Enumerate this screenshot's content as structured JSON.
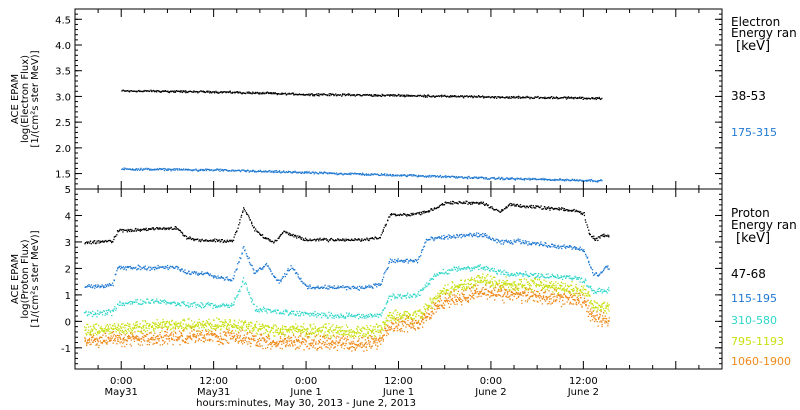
{
  "chart_data": [
    {
      "type": "scatter",
      "panel": "electron",
      "ylabel": [
        "ACE EPAM",
        "log(Electron Flux)",
        "[1/(cm²s ster MeV)]"
      ],
      "ylim": [
        1.2,
        4.7
      ],
      "yticks": [
        1.5,
        2.0,
        2.5,
        3.0,
        3.5,
        4.0,
        4.5
      ],
      "ytick_labels": [
        "1.5",
        "2.0",
        "2.5",
        "3.0",
        "3.5",
        "4.0",
        "4.5"
      ],
      "xlim": [
        -0.25,
        3.25
      ],
      "legend": {
        "title": [
          "Electron",
          "Energy ran"
        ],
        "unit": "[keV]",
        "entries": [
          "38-53",
          "175-315"
        ]
      },
      "series": [
        {
          "name": "38-53",
          "color": "#000000",
          "profile": [
            [
              0.0,
              3.12
            ],
            [
              0.5,
              3.1
            ],
            [
              1.0,
              3.05
            ],
            [
              1.5,
              3.03
            ],
            [
              2.0,
              3.0
            ],
            [
              2.5,
              2.98
            ],
            [
              2.6,
              2.97
            ]
          ]
        },
        {
          "name": "175-315",
          "color": "#1e78d2",
          "profile": [
            [
              0.0,
              1.6
            ],
            [
              0.5,
              1.58
            ],
            [
              1.0,
              1.53
            ],
            [
              1.5,
              1.48
            ],
            [
              2.0,
              1.42
            ],
            [
              2.5,
              1.38
            ],
            [
              2.6,
              1.37
            ]
          ]
        }
      ]
    },
    {
      "type": "scatter",
      "panel": "proton",
      "ylabel": [
        "ACE EPAM",
        "log(Proton Flux)",
        "[1/(cm²s ster MeV)]"
      ],
      "ylim": [
        -1.8,
        5.0
      ],
      "yticks": [
        -1,
        0,
        1,
        2,
        3,
        4,
        5
      ],
      "ytick_labels": [
        "-1",
        "0",
        "1",
        "2",
        "3",
        "4",
        "5"
      ],
      "xlim": [
        -0.25,
        3.25
      ],
      "xticks": [
        0,
        0.5,
        1.0,
        1.5,
        2.0,
        2.5
      ],
      "xtick_labels": [
        [
          "0:00",
          "May31"
        ],
        [
          "12:00",
          "May31"
        ],
        [
          "0:00",
          "June 1"
        ],
        [
          "12:00",
          "June 1"
        ],
        [
          "0:00",
          "June 2"
        ],
        [
          "12:00",
          "June 2"
        ]
      ],
      "xlabel": "hours:minutes, May 30, 2013 - June  2, 2013",
      "legend": {
        "title": [
          "Proton",
          "Energy ran"
        ],
        "unit": "[keV]",
        "entries": [
          "47-68",
          "115-195",
          "310-580",
          "795-1193",
          "1060-1900"
        ]
      },
      "series": [
        {
          "name": "47-68",
          "color": "#000000",
          "profile": [
            [
              -0.2,
              3.0
            ],
            [
              -0.05,
              3.05
            ],
            [
              -0.02,
              3.45
            ],
            [
              0.3,
              3.55
            ],
            [
              0.35,
              3.2
            ],
            [
              0.4,
              3.1
            ],
            [
              0.6,
              3.05
            ],
            [
              0.62,
              3.4
            ],
            [
              0.66,
              4.3
            ],
            [
              0.72,
              3.5
            ],
            [
              0.75,
              3.3
            ],
            [
              0.82,
              3.0
            ],
            [
              0.88,
              3.4
            ],
            [
              0.95,
              3.2
            ],
            [
              1.0,
              3.1
            ],
            [
              1.3,
              3.1
            ],
            [
              1.4,
              3.2
            ],
            [
              1.45,
              4.05
            ],
            [
              1.55,
              4.05
            ],
            [
              1.62,
              4.1
            ],
            [
              1.7,
              4.3
            ],
            [
              1.75,
              4.5
            ],
            [
              1.95,
              4.5
            ],
            [
              2.05,
              4.15
            ],
            [
              2.1,
              4.45
            ],
            [
              2.2,
              4.35
            ],
            [
              2.3,
              4.3
            ],
            [
              2.45,
              4.2
            ],
            [
              2.5,
              4.1
            ],
            [
              2.53,
              3.3
            ],
            [
              2.57,
              3.1
            ],
            [
              2.6,
              3.3
            ],
            [
              2.64,
              3.2
            ]
          ]
        },
        {
          "name": "115-195",
          "color": "#1e78d2",
          "profile": [
            [
              -0.2,
              1.35
            ],
            [
              -0.05,
              1.4
            ],
            [
              -0.02,
              2.05
            ],
            [
              0.3,
              2.05
            ],
            [
              0.35,
              1.85
            ],
            [
              0.45,
              1.85
            ],
            [
              0.55,
              1.65
            ],
            [
              0.6,
              1.6
            ],
            [
              0.66,
              2.8
            ],
            [
              0.72,
              1.8
            ],
            [
              0.78,
              2.2
            ],
            [
              0.85,
              1.5
            ],
            [
              0.92,
              2.1
            ],
            [
              1.0,
              1.3
            ],
            [
              1.3,
              1.3
            ],
            [
              1.4,
              1.4
            ],
            [
              1.45,
              2.3
            ],
            [
              1.6,
              2.3
            ],
            [
              1.65,
              3.1
            ],
            [
              1.75,
              3.2
            ],
            [
              1.95,
              3.3
            ],
            [
              2.05,
              3.0
            ],
            [
              2.15,
              3.05
            ],
            [
              2.3,
              2.9
            ],
            [
              2.45,
              2.8
            ],
            [
              2.5,
              2.7
            ],
            [
              2.55,
              1.85
            ],
            [
              2.58,
              1.75
            ],
            [
              2.62,
              2.1
            ],
            [
              2.64,
              2.0
            ]
          ]
        },
        {
          "name": "310-580",
          "color": "#2fd6c9",
          "profile": [
            [
              -0.2,
              0.3
            ],
            [
              -0.05,
              0.35
            ],
            [
              -0.02,
              0.7
            ],
            [
              0.2,
              0.8
            ],
            [
              0.35,
              0.65
            ],
            [
              0.6,
              0.6
            ],
            [
              0.66,
              1.6
            ],
            [
              0.72,
              0.5
            ],
            [
              0.8,
              0.4
            ],
            [
              0.9,
              0.35
            ],
            [
              1.0,
              0.3
            ],
            [
              1.3,
              0.2
            ],
            [
              1.4,
              0.25
            ],
            [
              1.45,
              0.95
            ],
            [
              1.6,
              1.0
            ],
            [
              1.7,
              1.8
            ],
            [
              1.8,
              2.0
            ],
            [
              1.95,
              2.05
            ],
            [
              2.05,
              1.85
            ],
            [
              2.3,
              1.75
            ],
            [
              2.5,
              1.6
            ],
            [
              2.55,
              1.15
            ],
            [
              2.64,
              1.2
            ]
          ]
        },
        {
          "name": "795-1193",
          "color": "#c8e010",
          "profile": [
            [
              -0.2,
              -0.35
            ],
            [
              0.0,
              -0.25
            ],
            [
              0.3,
              -0.1
            ],
            [
              0.6,
              -0.1
            ],
            [
              0.8,
              -0.3
            ],
            [
              1.0,
              -0.3
            ],
            [
              1.3,
              -0.4
            ],
            [
              1.4,
              -0.3
            ],
            [
              1.45,
              0.2
            ],
            [
              1.6,
              0.2
            ],
            [
              1.75,
              1.2
            ],
            [
              1.95,
              1.6
            ],
            [
              2.05,
              1.45
            ],
            [
              2.3,
              1.35
            ],
            [
              2.5,
              1.2
            ],
            [
              2.55,
              0.6
            ],
            [
              2.64,
              0.55
            ]
          ]
        },
        {
          "name": "1060-1900",
          "color": "#ee8a1a",
          "profile": [
            [
              -0.2,
              -0.7
            ],
            [
              0.0,
              -0.65
            ],
            [
              0.3,
              -0.55
            ],
            [
              0.6,
              -0.55
            ],
            [
              0.8,
              -0.75
            ],
            [
              1.0,
              -0.75
            ],
            [
              1.3,
              -0.85
            ],
            [
              1.4,
              -0.7
            ],
            [
              1.45,
              -0.1
            ],
            [
              1.6,
              -0.05
            ],
            [
              1.75,
              0.8
            ],
            [
              1.95,
              1.15
            ],
            [
              2.05,
              1.05
            ],
            [
              2.3,
              0.95
            ],
            [
              2.5,
              0.8
            ],
            [
              2.55,
              0.15
            ],
            [
              2.64,
              0.1
            ]
          ]
        }
      ]
    }
  ]
}
